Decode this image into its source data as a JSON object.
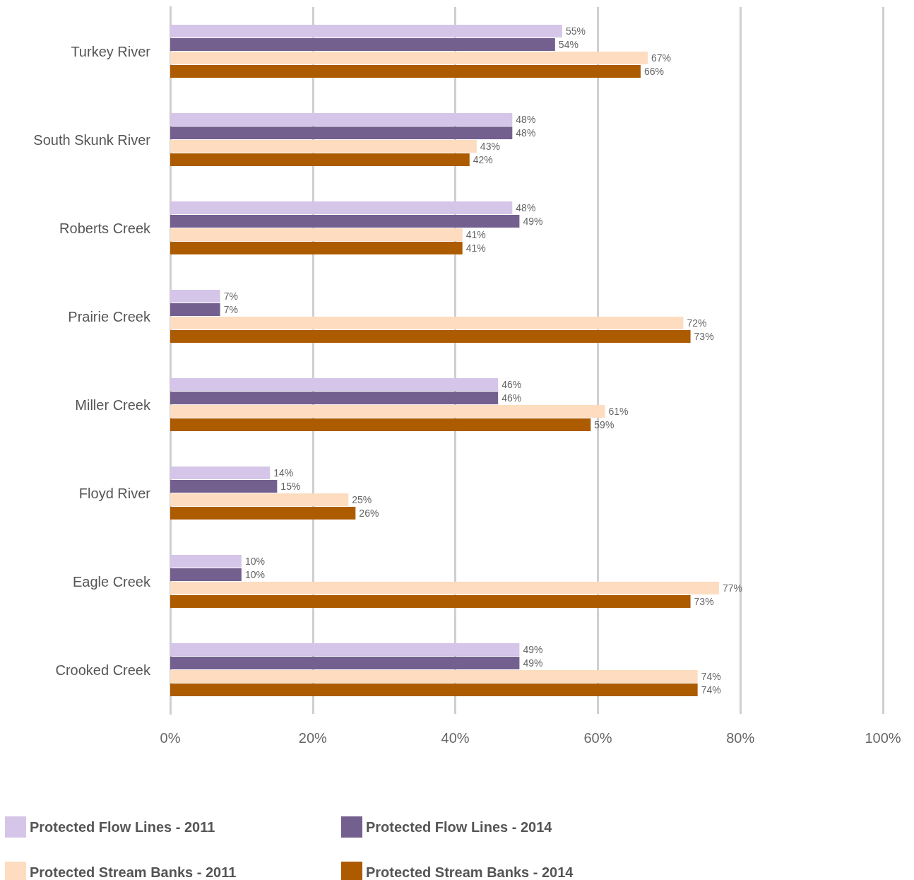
{
  "chart_data": {
    "type": "bar",
    "orientation": "horizontal",
    "categories": [
      "Turkey River",
      "South Skunk River",
      "Roberts Creek",
      "Prairie Creek",
      "Miller Creek",
      "Floyd River",
      "Eagle Creek",
      "Crooked Creek"
    ],
    "series": [
      {
        "name": "Protected Flow Lines - 2011",
        "color": "#d5c5e8",
        "values": [
          55,
          48,
          48,
          7,
          46,
          14,
          10,
          49
        ],
        "value_labels": [
          "55%",
          "48%",
          "48%",
          "7%",
          "46%",
          "14%",
          "10%",
          "49%"
        ]
      },
      {
        "name": "Protected Flow Lines - 2014",
        "color": "#74608f",
        "values": [
          54,
          48,
          49,
          7,
          46,
          15,
          10,
          49
        ],
        "value_labels": [
          "54%",
          "48%",
          "49%",
          "7%",
          "46%",
          "15%",
          "10%",
          "49%"
        ]
      },
      {
        "name": "Protected Stream Banks - 2011",
        "color": "#fddcc0",
        "values": [
          67,
          43,
          41,
          72,
          61,
          25,
          77,
          74
        ],
        "value_labels": [
          "67%",
          "43%",
          "41%",
          "72%",
          "61%",
          "25%",
          "77%",
          "74%"
        ]
      },
      {
        "name": "Protected Stream Banks - 2014",
        "color": "#ad5b00",
        "values": [
          66,
          42,
          41,
          73,
          59,
          26,
          73,
          74
        ],
        "value_labels": [
          "66%",
          "42%",
          "41%",
          "73%",
          "59%",
          "26%",
          "73%",
          "74%"
        ]
      }
    ],
    "xlim": [
      0,
      100
    ],
    "xticks": [
      {
        "value": 0,
        "label": "0%"
      },
      {
        "value": 20,
        "label": "20%"
      },
      {
        "value": 40,
        "label": "40%"
      },
      {
        "value": 60,
        "label": "60%"
      },
      {
        "value": 80,
        "label": "80%"
      },
      {
        "value": 100,
        "label": "100%"
      }
    ],
    "grid": "x",
    "legend": "bottom"
  }
}
